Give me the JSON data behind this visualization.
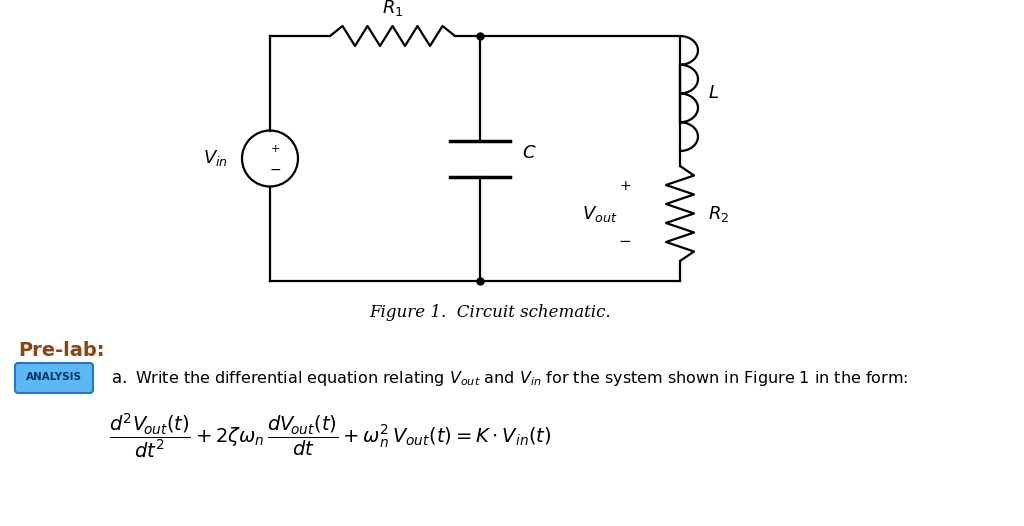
{
  "background_color": "#ffffff",
  "figure_caption": "Figure 1.  Circuit schematic.",
  "prelab_title": "Pre-lab:",
  "prelab_color": "#8B4513",
  "analysis_label": "ANALYSIS",
  "analysis_bg_color": "#5bb8f5",
  "analysis_border_color": "#2277cc",
  "analysis_text_color": "#003366",
  "item_label": "a.",
  "item_text": "Write the differential equation relating $V_{\\mathrm{out}}$ and $V_{\\mathrm{in}}$ for the system shown in Figure 1 in the form:"
}
